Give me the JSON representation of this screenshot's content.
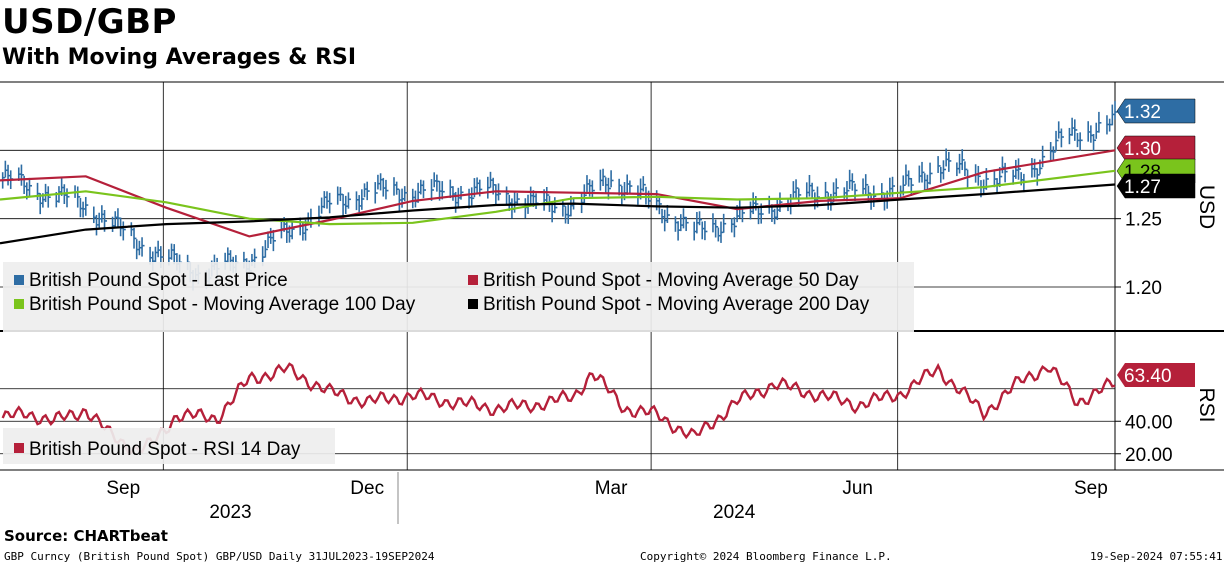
{
  "title": "USD/GBP",
  "subtitle": "With Moving Averages & RSI",
  "source": "Source:  CHARTbeat",
  "footer": {
    "left": "GBP Curncy (British Pound Spot) GBP/USD  Daily 31JUL2023-19SEP2024",
    "center": "Copyright© 2024 Bloomberg Finance L.P.",
    "right": "19-Sep-2024 07:55:41"
  },
  "colors": {
    "price": "#2e6da4",
    "ma50": "#b5203a",
    "ma100": "#7ac41c",
    "ma200": "#000000",
    "rsi": "#b5203a",
    "legend_bg": "#eeeeee"
  },
  "chart_data": [
    {
      "type": "line",
      "panel": "price",
      "axis_label": "USD",
      "ylim": [
        1.17,
        1.35
      ],
      "yticks": [
        "1.20",
        "1.25"
      ],
      "xrange": [
        "2023-07-31",
        "2024-09-19"
      ],
      "series": [
        {
          "name": "British Pound Spot - Last Price",
          "style": "bars",
          "x": [
            "2023-08-01",
            "2023-08-15",
            "2023-09-01",
            "2023-09-15",
            "2023-10-01",
            "2023-10-15",
            "2023-11-01",
            "2023-11-15",
            "2023-12-01",
            "2023-12-15",
            "2024-01-01",
            "2024-01-15",
            "2024-02-01",
            "2024-02-15",
            "2024-03-01",
            "2024-03-15",
            "2024-04-01",
            "2024-04-15",
            "2024-05-01",
            "2024-05-15",
            "2024-06-01",
            "2024-06-15",
            "2024-07-01",
            "2024-07-15",
            "2024-08-01",
            "2024-08-15",
            "2024-09-01",
            "2024-09-19"
          ],
          "values": [
            1.28,
            1.27,
            1.26,
            1.24,
            1.22,
            1.21,
            1.22,
            1.24,
            1.26,
            1.27,
            1.27,
            1.27,
            1.27,
            1.26,
            1.26,
            1.28,
            1.26,
            1.24,
            1.25,
            1.26,
            1.27,
            1.27,
            1.27,
            1.29,
            1.28,
            1.28,
            1.31,
            1.32
          ]
        },
        {
          "name": "British Pound Spot - Moving Average 50 Day",
          "style": "line",
          "x": [
            "2023-07-31",
            "2023-09-01",
            "2023-10-01",
            "2023-11-01",
            "2023-12-01",
            "2024-01-01",
            "2024-02-01",
            "2024-03-01",
            "2024-04-01",
            "2024-05-01",
            "2024-06-01",
            "2024-07-01",
            "2024-08-01",
            "2024-09-19"
          ],
          "values": [
            1.278,
            1.281,
            1.258,
            1.237,
            1.249,
            1.263,
            1.27,
            1.269,
            1.268,
            1.257,
            1.263,
            1.265,
            1.284,
            1.3
          ]
        },
        {
          "name": "British Pound Spot - Moving Average 100 Day",
          "style": "line",
          "x": [
            "2023-07-31",
            "2023-09-01",
            "2023-10-01",
            "2023-11-01",
            "2023-12-01",
            "2024-01-01",
            "2024-02-01",
            "2024-03-01",
            "2024-04-01",
            "2024-05-01",
            "2024-06-01",
            "2024-07-01",
            "2024-08-01",
            "2024-09-19"
          ],
          "values": [
            1.264,
            1.27,
            1.262,
            1.25,
            1.246,
            1.247,
            1.255,
            1.265,
            1.266,
            1.264,
            1.265,
            1.269,
            1.273,
            1.285
          ]
        },
        {
          "name": "British Pound Spot - Moving Average 200 Day",
          "style": "line",
          "x": [
            "2023-07-31",
            "2023-09-01",
            "2023-10-01",
            "2023-11-01",
            "2023-12-01",
            "2024-01-01",
            "2024-02-01",
            "2024-03-01",
            "2024-04-01",
            "2024-05-01",
            "2024-06-01",
            "2024-07-01",
            "2024-08-01",
            "2024-09-19"
          ],
          "values": [
            1.232,
            1.242,
            1.246,
            1.248,
            1.251,
            1.256,
            1.26,
            1.261,
            1.259,
            1.258,
            1.26,
            1.264,
            1.268,
            1.275
          ]
        }
      ],
      "last_values": [
        {
          "label": "1.32",
          "value": 1.32,
          "color": "#2e6da4"
        },
        {
          "label": "1.30",
          "value": 1.3,
          "color": "#b5203a"
        },
        {
          "label": "1.28",
          "value": 1.284,
          "color": "#7ac41c"
        },
        {
          "label": "1.27",
          "value": 1.275,
          "color": "#000000"
        }
      ],
      "legend": [
        {
          "label": "British Pound Spot - Last Price",
          "color": "#2e6da4"
        },
        {
          "label": "British Pound Spot - Moving Average 50 Day",
          "color": "#b5203a"
        },
        {
          "label": "British Pound Spot - Moving Average 100 Day",
          "color": "#7ac41c"
        },
        {
          "label": "British Pound Spot - Moving Average 200 Day",
          "color": "#000000"
        }
      ]
    },
    {
      "type": "line",
      "panel": "rsi",
      "axis_label": "RSI",
      "ylim": [
        10,
        90
      ],
      "yticks": [
        "20.00",
        "40.00"
      ],
      "series": [
        {
          "name": "British Pound Spot - RSI 14 Day",
          "x": [
            "2023-08-01",
            "2023-08-10",
            "2023-08-20",
            "2023-09-01",
            "2023-09-10",
            "2023-09-20",
            "2023-09-26",
            "2023-10-05",
            "2023-10-20",
            "2023-11-01",
            "2023-11-15",
            "2023-12-01",
            "2023-12-15",
            "2024-01-01",
            "2024-01-15",
            "2024-02-01",
            "2024-02-15",
            "2024-03-01",
            "2024-03-08",
            "2024-03-20",
            "2024-04-01",
            "2024-04-15",
            "2024-05-01",
            "2024-05-15",
            "2024-06-01",
            "2024-06-15",
            "2024-07-01",
            "2024-07-15",
            "2024-08-01",
            "2024-08-15",
            "2024-08-25",
            "2024-09-05",
            "2024-09-19"
          ],
          "values": [
            42,
            45,
            40,
            47,
            32,
            22,
            26,
            44,
            42,
            66,
            72,
            58,
            52,
            56,
            52,
            48,
            50,
            55,
            70,
            48,
            44,
            30,
            52,
            63,
            56,
            50,
            57,
            72,
            45,
            65,
            74,
            52,
            63.4
          ]
        }
      ],
      "last_values": [
        {
          "label": "63.40",
          "value": 63.4,
          "color": "#b5203a"
        }
      ],
      "legend": [
        {
          "label": "British Pound Spot - RSI 14 Day",
          "color": "#b5203a"
        }
      ]
    }
  ],
  "x_axis": {
    "months": [
      {
        "label": "Sep",
        "date": "2023-09-15"
      },
      {
        "label": "Dec",
        "date": "2023-12-15"
      },
      {
        "label": "Mar",
        "date": "2024-03-15"
      },
      {
        "label": "Jun",
        "date": "2024-06-15"
      },
      {
        "label": "Sep",
        "date": "2024-09-10"
      }
    ],
    "years": [
      {
        "label": "2023",
        "date": "2023-10-25"
      },
      {
        "label": "2024",
        "date": "2024-04-15"
      }
    ]
  }
}
